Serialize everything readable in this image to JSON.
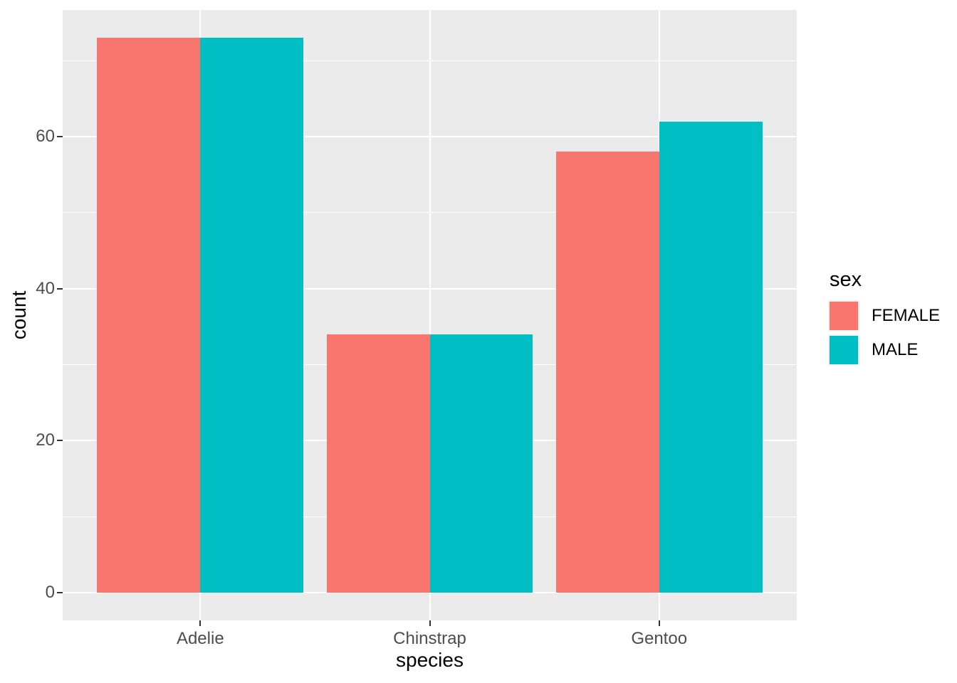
{
  "chart_data": {
    "type": "bar",
    "mode": "grouped",
    "title": "",
    "xlabel": "species",
    "ylabel": "count",
    "categories": [
      "Adelie",
      "Chinstrap",
      "Gentoo"
    ],
    "series": [
      {
        "name": "FEMALE",
        "color": "#F8766D",
        "values": [
          73,
          34,
          58
        ]
      },
      {
        "name": "MALE",
        "color": "#00BFC4",
        "values": [
          73,
          34,
          62
        ]
      }
    ],
    "y_ticks": [
      0,
      20,
      40,
      60
    ],
    "y_minor_ticks": [
      10,
      30,
      50,
      70
    ],
    "ylim": [
      -3.65,
      76.65
    ],
    "grid": "major+minor horizontal, major vertical at categories",
    "legend_position": "right"
  },
  "legend": {
    "title": "sex"
  },
  "colors": {
    "panel_bg": "#EBEBEB",
    "grid": "#FFFFFF",
    "tick_mark": "#333333",
    "tick_label": "#4D4D4D",
    "axis_title": "#000000",
    "background": "#FFFFFF"
  }
}
